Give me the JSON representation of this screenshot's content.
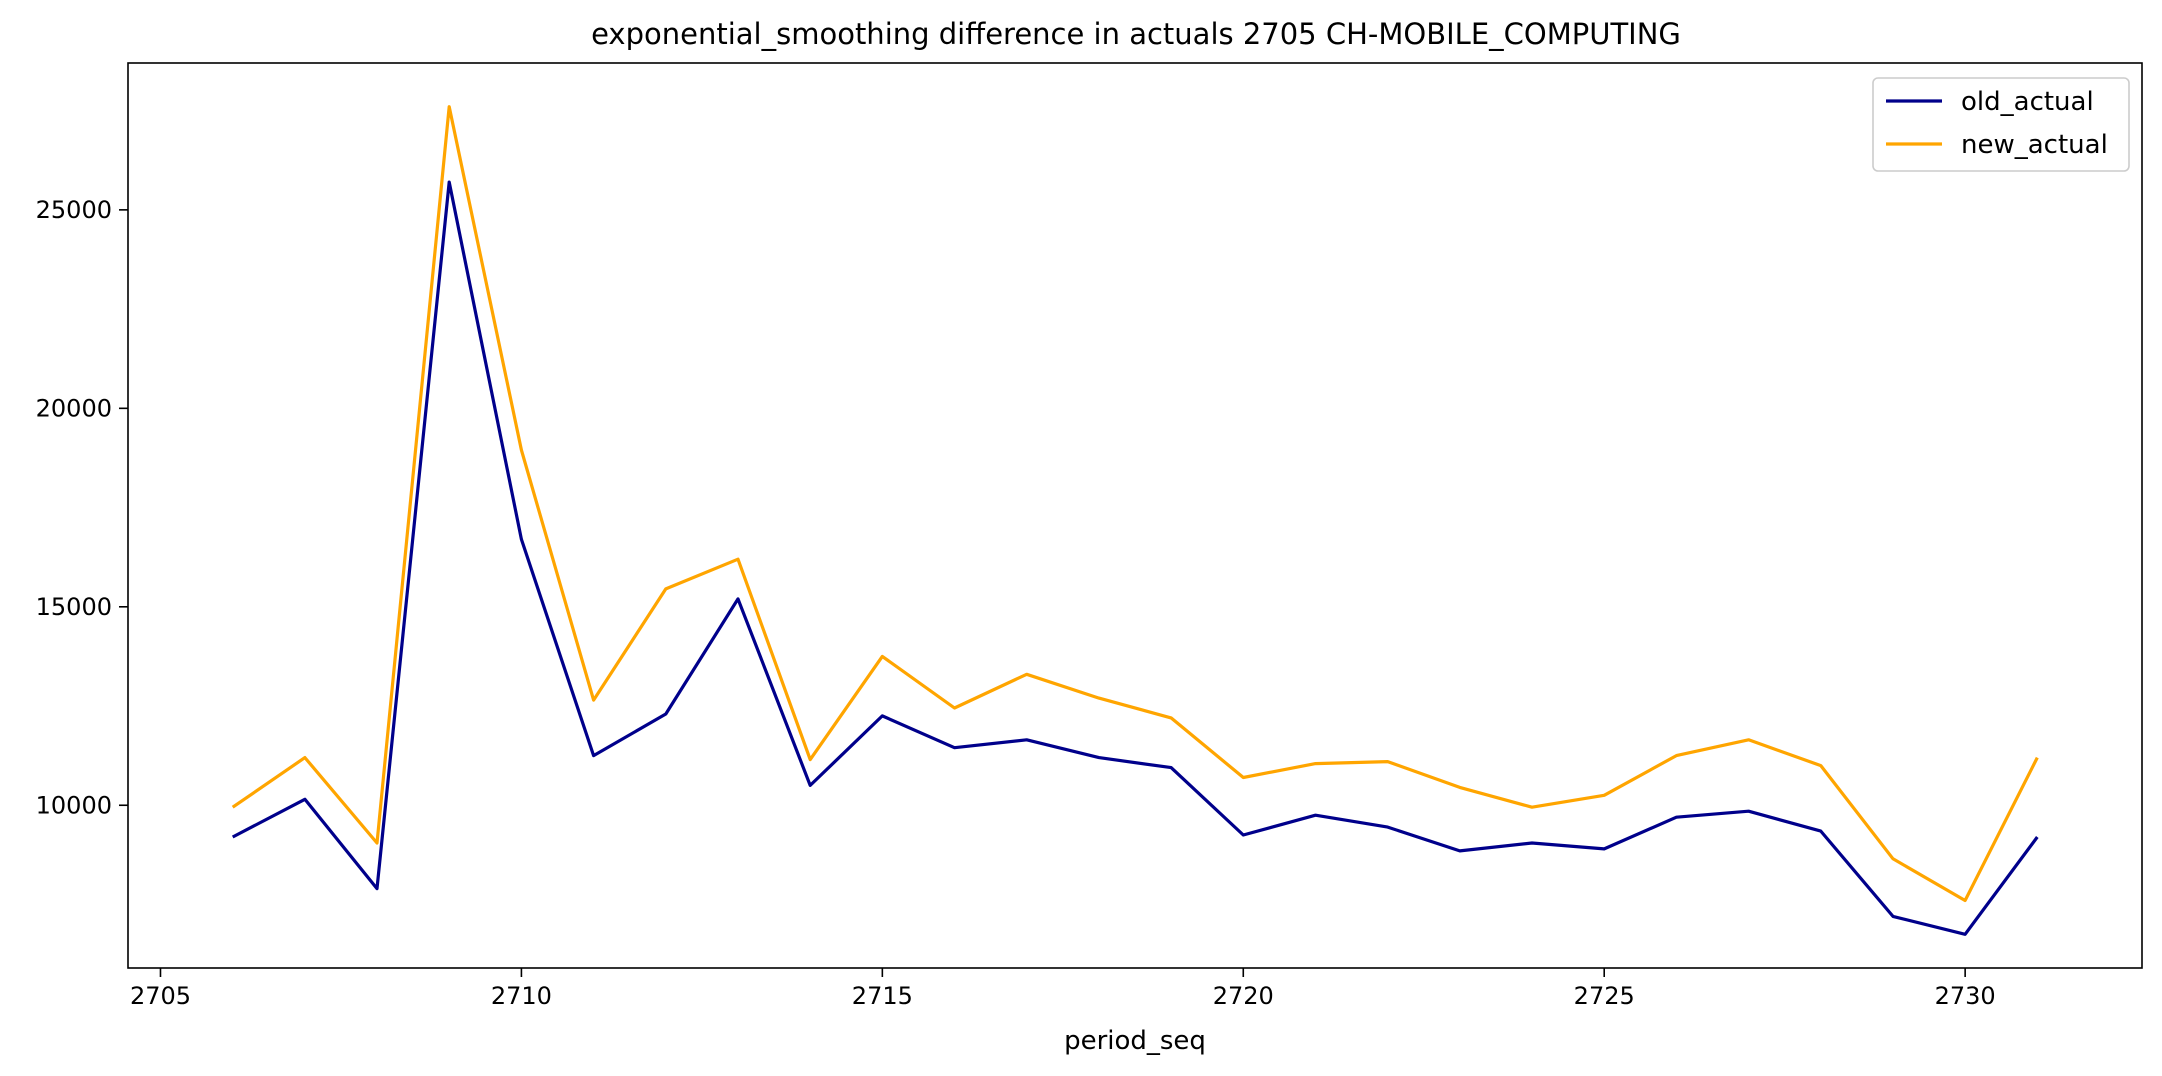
{
  "chart_data": {
    "type": "line",
    "title": "exponential_smoothing difference in actuals 2705 CH-MOBILE_COMPUTING",
    "xlabel": "period_seq",
    "ylabel": "",
    "xlim": [
      2704.55,
      2732.45
    ],
    "ylim": [
      5900,
      28700
    ],
    "x_ticks": [
      2705,
      2710,
      2715,
      2720,
      2725,
      2730
    ],
    "y_ticks": [
      10000,
      15000,
      20000,
      25000
    ],
    "grid": false,
    "legend_position": "top-right",
    "x": [
      2706,
      2707,
      2708,
      2709,
      2710,
      2711,
      2712,
      2713,
      2714,
      2715,
      2716,
      2717,
      2718,
      2719,
      2720,
      2721,
      2722,
      2723,
      2724,
      2725,
      2726,
      2727,
      2728,
      2729,
      2730,
      2731
    ],
    "series": [
      {
        "name": "old_actual",
        "color": "#00008b",
        "values": [
          9200,
          10150,
          7900,
          25700,
          16700,
          11250,
          12300,
          15200,
          10500,
          12250,
          11450,
          11650,
          11200,
          10950,
          9250,
          9750,
          9450,
          8850,
          9050,
          8900,
          9700,
          9850,
          9350,
          7200,
          6750,
          9200
        ]
      },
      {
        "name": "new_actual",
        "color": "#ffa500",
        "values": [
          9950,
          11200,
          9050,
          27600,
          18950,
          12650,
          15450,
          16200,
          11150,
          13750,
          12450,
          13300,
          12700,
          12200,
          10700,
          11050,
          11100,
          10450,
          9950,
          10250,
          11250,
          11650,
          11000,
          8650,
          7600,
          11200
        ]
      }
    ]
  }
}
